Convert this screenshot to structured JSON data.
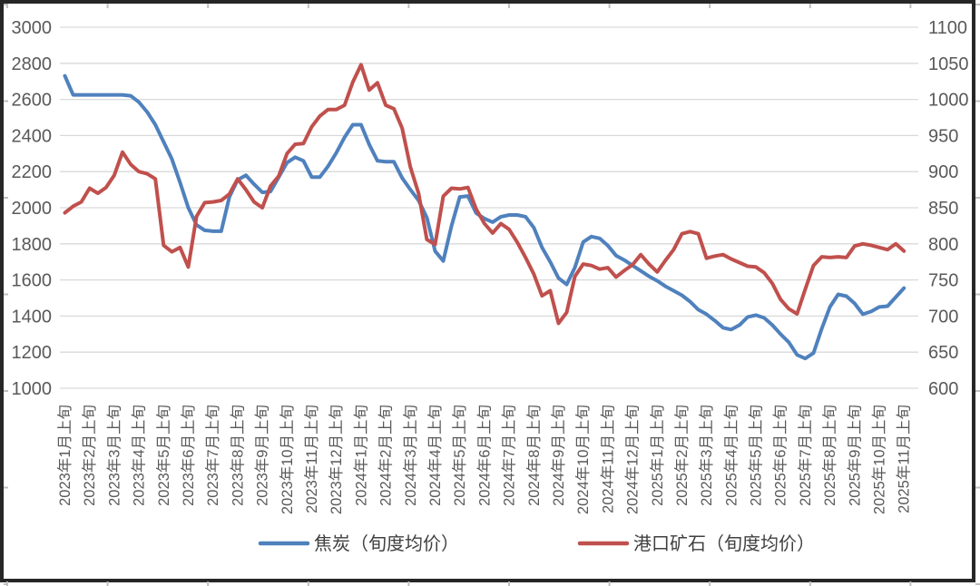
{
  "chart_data": {
    "type": "line",
    "title": "",
    "grid": true,
    "legend_position": "bottom",
    "points_per_month": 3,
    "x_tick_labels": [
      "2023年1月上旬",
      "2023年2月上旬",
      "2023年3月上旬",
      "2023年4月上旬",
      "2023年5月上旬",
      "2023年6月上旬",
      "2023年7月上旬",
      "2023年8月上旬",
      "2023年9月上旬",
      "2023年10月上旬",
      "2023年11月上旬",
      "2023年12月上旬",
      "2024年1月上旬",
      "2024年2月上旬",
      "2024年3月上旬",
      "2024年4月上旬",
      "2024年5月上旬",
      "2024年6月上旬",
      "2024年7月上旬",
      "2024年8月上旬",
      "2024年9月上旬",
      "2024年10月上旬",
      "2024年11月上旬",
      "2024年12月上旬",
      "2025年1月上旬",
      "2025年2月上旬",
      "2025年3月上旬",
      "2025年4月上旬",
      "2025年5月上旬",
      "2025年6月上旬",
      "2025年7月上旬",
      "2025年8月上旬",
      "2025年9月上旬",
      "2025年10月上旬",
      "2025年11月上旬"
    ],
    "left_axis": {
      "min": 1000,
      "max": 3000,
      "step": 200,
      "ticks": [
        3000,
        2800,
        2600,
        2400,
        2200,
        2000,
        1800,
        1600,
        1400,
        1200,
        1000
      ]
    },
    "right_axis": {
      "min": 600,
      "max": 1100,
      "step": 50,
      "ticks": [
        1100,
        1050,
        1000,
        950,
        900,
        850,
        800,
        750,
        700,
        650,
        600
      ]
    },
    "series": [
      {
        "name": "焦炭（旬度均价）",
        "axis": "left",
        "color": "#4F81BD",
        "values": [
          2730,
          2625,
          2625,
          2625,
          2625,
          2625,
          2625,
          2625,
          2620,
          2585,
          2530,
          2460,
          2365,
          2270,
          2140,
          2000,
          1905,
          1875,
          1870,
          1870,
          2060,
          2155,
          2180,
          2130,
          2085,
          2090,
          2170,
          2250,
          2280,
          2260,
          2170,
          2170,
          2230,
          2305,
          2390,
          2460,
          2460,
          2350,
          2260,
          2255,
          2255,
          2165,
          2100,
          2040,
          1945,
          1760,
          1705,
          1900,
          2060,
          2065,
          1970,
          1940,
          1920,
          1950,
          1960,
          1960,
          1950,
          1890,
          1780,
          1700,
          1610,
          1575,
          1670,
          1810,
          1840,
          1830,
          1790,
          1735,
          1710,
          1680,
          1650,
          1620,
          1595,
          1565,
          1540,
          1515,
          1480,
          1435,
          1410,
          1375,
          1335,
          1325,
          1350,
          1395,
          1405,
          1390,
          1350,
          1300,
          1255,
          1185,
          1165,
          1195,
          1330,
          1450,
          1520,
          1510,
          1470,
          1410,
          1425,
          1450,
          1455,
          1505,
          1555
        ]
      },
      {
        "name": "港口矿石（旬度均价）",
        "axis": "right",
        "color": "#C0504D",
        "values": [
          843,
          852,
          858,
          877,
          870,
          878,
          895,
          927,
          910,
          900,
          897,
          890,
          798,
          789,
          795,
          768,
          838,
          857,
          858,
          860,
          869,
          890,
          875,
          858,
          850,
          880,
          894,
          925,
          938,
          939,
          962,
          977,
          986,
          986,
          992,
          1024,
          1048,
          1013,
          1023,
          992,
          987,
          960,
          906,
          870,
          806,
          799,
          866,
          877,
          876,
          878,
          848,
          828,
          815,
          828,
          820,
          802,
          781,
          758,
          728,
          735,
          690,
          705,
          755,
          772,
          770,
          765,
          767,
          754,
          763,
          771,
          785,
          772,
          761,
          777,
          792,
          814,
          817,
          814,
          780,
          783,
          785,
          779,
          774,
          769,
          768,
          760,
          745,
          723,
          710,
          703,
          737,
          770,
          782,
          781,
          782,
          781,
          797,
          800,
          798,
          795,
          792,
          800,
          790
        ]
      }
    ]
  },
  "colors": {
    "frame": "#262626",
    "gridline": "#D9D9D9",
    "axis_text": "#595959",
    "legend_text": "#404040",
    "edge_tick": "#BFBFBF",
    "background": "#FFFFFF"
  }
}
